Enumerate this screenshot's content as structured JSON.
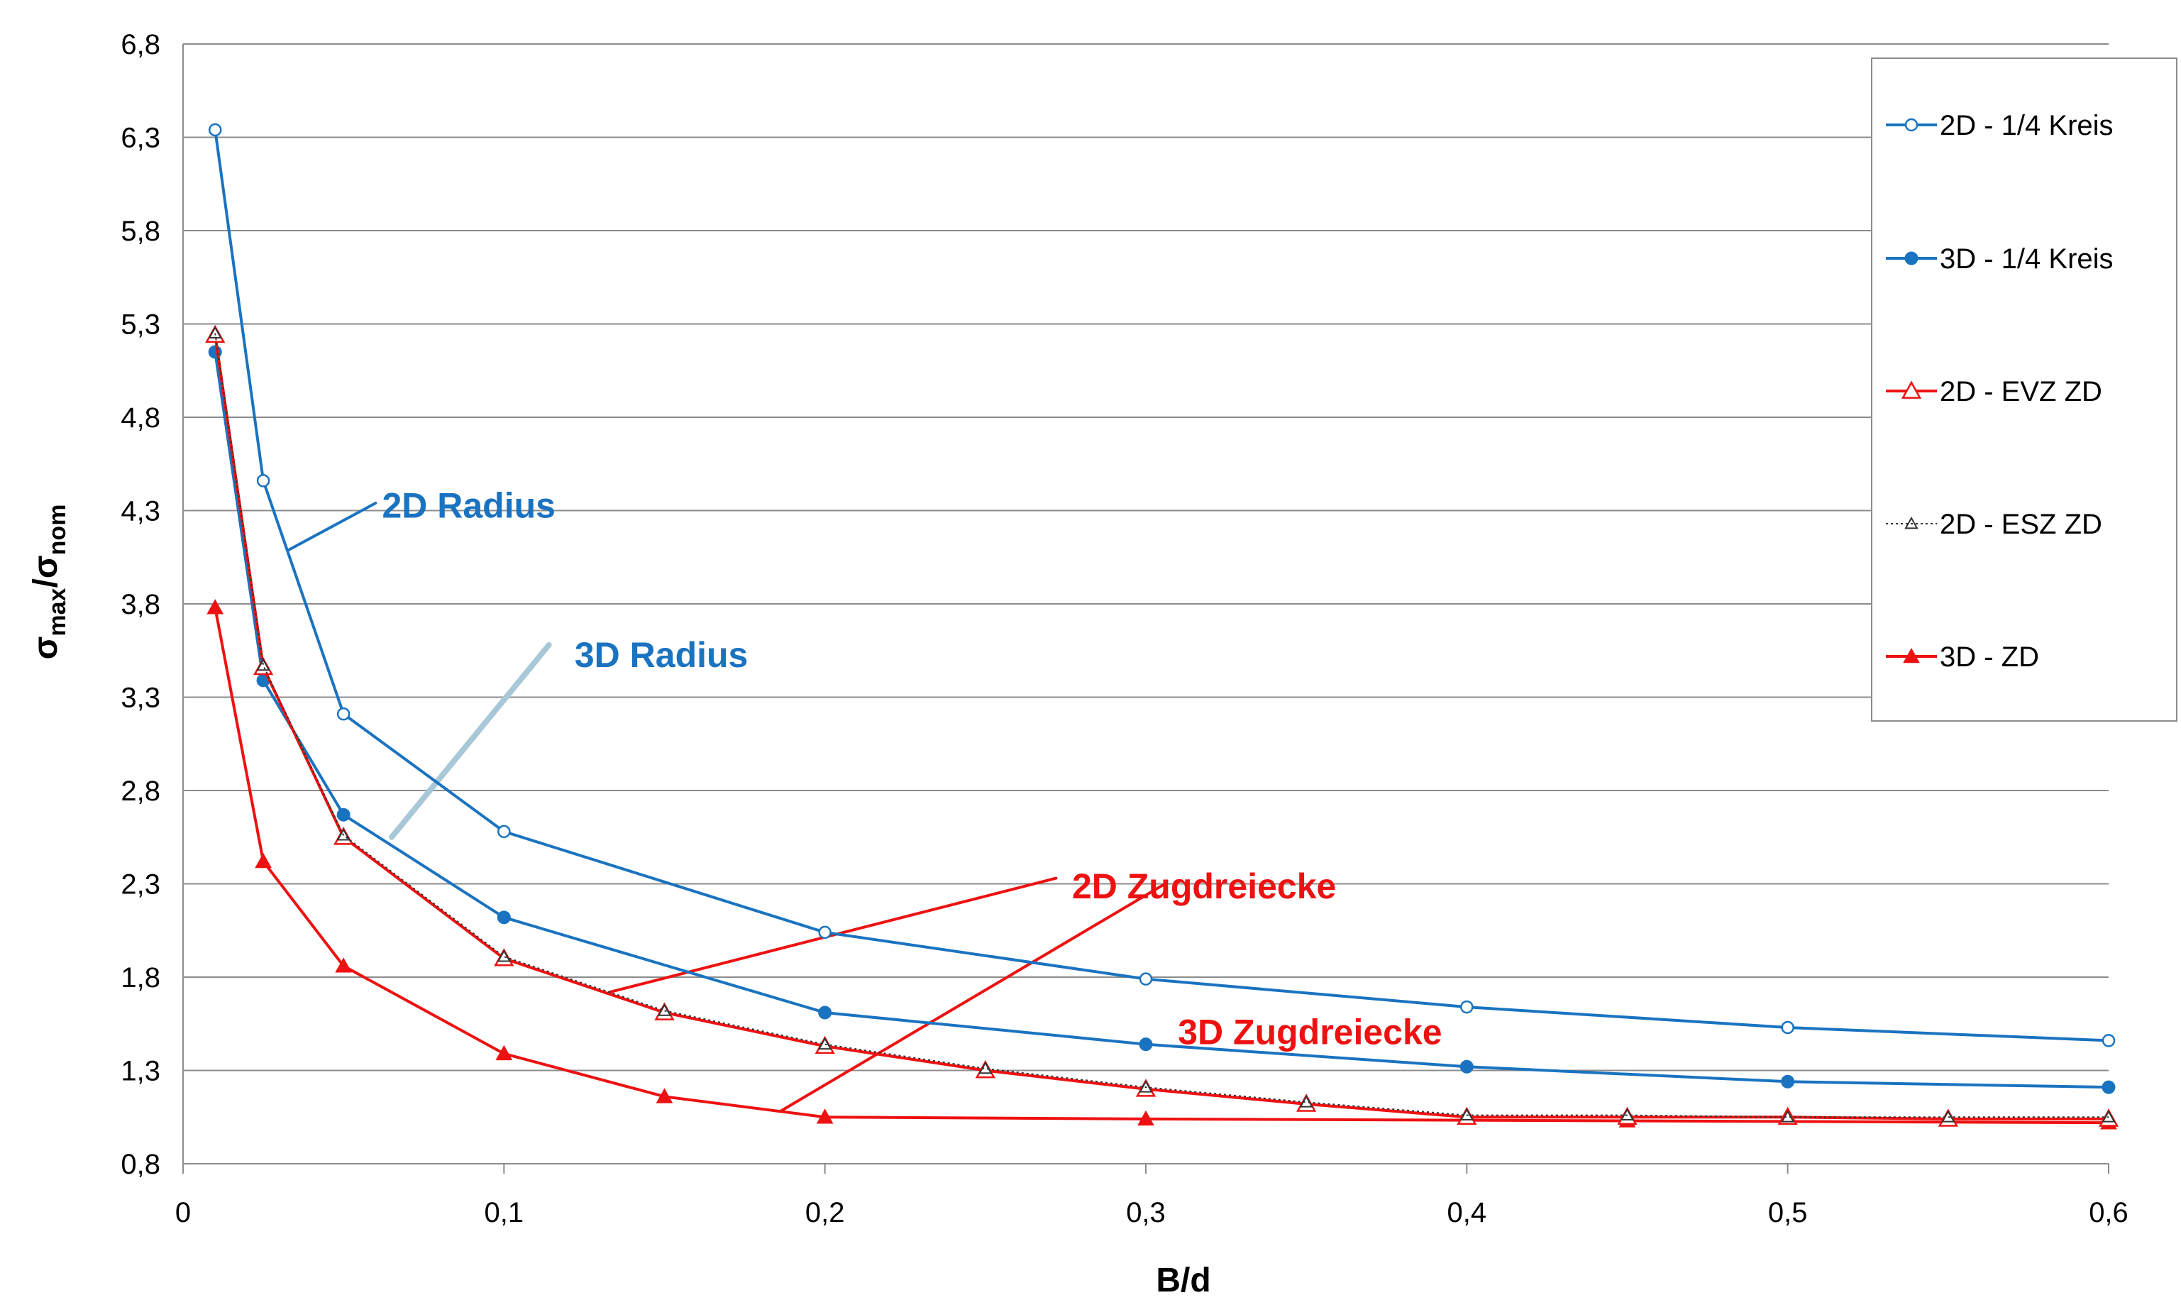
{
  "chart_data": {
    "type": "line",
    "title": "",
    "xlabel": "B/d",
    "ylabel": "σmax/σnom",
    "ylabel_parts": {
      "sigma": "σ",
      "sub_max": "max",
      "slash": "/",
      "sub_nom": "nom"
    },
    "xlim": [
      0,
      0.6
    ],
    "ylim": [
      0.8,
      6.8
    ],
    "x_ticks": [
      "0",
      "0,1",
      "0,2",
      "0,3",
      "0,4",
      "0,5",
      "0,6"
    ],
    "y_ticks": [
      "0,8",
      "1,3",
      "1,8",
      "2,3",
      "2,8",
      "3,3",
      "3,8",
      "4,3",
      "4,8",
      "5,3",
      "5,8",
      "6,3",
      "6,8"
    ],
    "grid": "horizontal",
    "legend_position": "right",
    "series": [
      {
        "name": "2D - 1/4 Kreis",
        "color": "#1a73c0",
        "marker": "circle-open",
        "line": "solid",
        "x": [
          0.01,
          0.025,
          0.05,
          0.1,
          0.2,
          0.3,
          0.4,
          0.5,
          0.6
        ],
        "y": [
          6.34,
          4.46,
          3.21,
          2.58,
          2.04,
          1.79,
          1.64,
          1.53,
          1.46
        ]
      },
      {
        "name": "3D - 1/4 Kreis",
        "color": "#1a73c0",
        "marker": "circle-filled",
        "line": "solid",
        "x": [
          0.01,
          0.025,
          0.05,
          0.1,
          0.2,
          0.3,
          0.4,
          0.5,
          0.6
        ],
        "y": [
          5.15,
          3.39,
          2.67,
          2.12,
          1.61,
          1.44,
          1.32,
          1.24,
          1.21
        ]
      },
      {
        "name": "2D - EVZ ZD",
        "color": "#ee1111",
        "marker": "triangle-open",
        "line": "solid",
        "x": [
          0.01,
          0.025,
          0.05,
          0.1,
          0.15,
          0.2,
          0.25,
          0.3,
          0.35,
          0.4,
          0.45,
          0.5,
          0.55,
          0.6
        ],
        "y": [
          5.24,
          3.46,
          2.55,
          1.9,
          1.61,
          1.43,
          1.3,
          1.2,
          1.12,
          1.05,
          1.05,
          1.05,
          1.04,
          1.04
        ]
      },
      {
        "name": "2D - ESZ ZD",
        "color": "#333333",
        "marker": "triangle-open-small",
        "line": "dotted",
        "x": [
          0.01,
          0.025,
          0.05,
          0.1,
          0.15,
          0.2,
          0.25,
          0.3,
          0.35,
          0.4,
          0.45,
          0.5,
          0.55,
          0.6
        ],
        "y": [
          5.25,
          3.47,
          2.56,
          1.91,
          1.62,
          1.44,
          1.31,
          1.21,
          1.13,
          1.06,
          1.06,
          1.05,
          1.05,
          1.05
        ]
      },
      {
        "name": "3D - ZD",
        "color": "#ee1111",
        "marker": "triangle-filled",
        "line": "solid",
        "x": [
          0.01,
          0.025,
          0.05,
          0.1,
          0.15,
          0.2,
          0.3,
          0.45,
          0.6
        ],
        "y": [
          3.78,
          2.42,
          1.86,
          1.39,
          1.16,
          1.05,
          1.04,
          1.03,
          1.02
        ]
      }
    ],
    "annotations": [
      {
        "text": "2D Radius",
        "color": "#1a73c0",
        "label_x": 0.062,
        "label_y": 4.33,
        "line_from": [
          0.06,
          4.34
        ],
        "line_to": [
          0.033,
          4.09
        ]
      },
      {
        "text": "3D Radius",
        "color": "#1a73c0",
        "label_x": 0.122,
        "label_y": 3.53,
        "line_from": [
          0.114,
          3.58
        ],
        "line_to": [
          0.065,
          2.55
        ]
      },
      {
        "text": "2D Zugdreiecke",
        "color": "#ee1111",
        "label_x": 0.277,
        "label_y": 2.29,
        "line_from": [
          0.272,
          2.33
        ],
        "line_to": [
          0.133,
          1.72
        ]
      },
      {
        "text": "3D Zugdreiecke",
        "color": "#ee1111",
        "label_x": 0.31,
        "label_y": 1.51,
        "line_from": [
          0.306,
          2.3
        ],
        "line_to": [
          0.186,
          1.08
        ]
      }
    ]
  }
}
